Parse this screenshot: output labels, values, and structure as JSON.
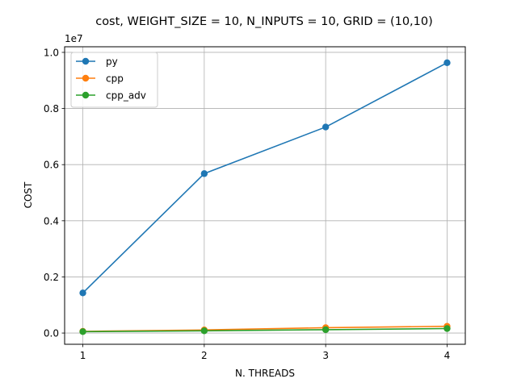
{
  "chart_data": {
    "type": "line",
    "title": "cost, WEIGHT_SIZE = 10, N_INPUTS = 10, GRID = (10,10)",
    "xlabel": "N. THREADS",
    "ylabel": "COST",
    "y_offset_label": "1e7",
    "x": [
      1,
      2,
      3,
      4
    ],
    "x_tick_labels": [
      "1",
      "2",
      "3",
      "4"
    ],
    "y_ticks": [
      0.0,
      0.2,
      0.4,
      0.6,
      0.8,
      1.0
    ],
    "y_tick_labels": [
      "0.0",
      "0.2",
      "0.4",
      "0.6",
      "0.8",
      "1.0"
    ],
    "y_scale": 10000000,
    "xlim": [
      0.85,
      4.15
    ],
    "ylim": [
      -0.04,
      1.02
    ],
    "grid": true,
    "legend_position": "top-left",
    "series": [
      {
        "name": "py",
        "color": "#1f77b4",
        "values": [
          0.143,
          0.568,
          0.734,
          0.963
        ]
      },
      {
        "name": "cpp",
        "color": "#ff7f0e",
        "values": [
          0.006,
          0.011,
          0.019,
          0.024
        ]
      },
      {
        "name": "cpp_adv",
        "color": "#2ca02c",
        "values": [
          0.005,
          0.008,
          0.012,
          0.016
        ]
      }
    ]
  }
}
